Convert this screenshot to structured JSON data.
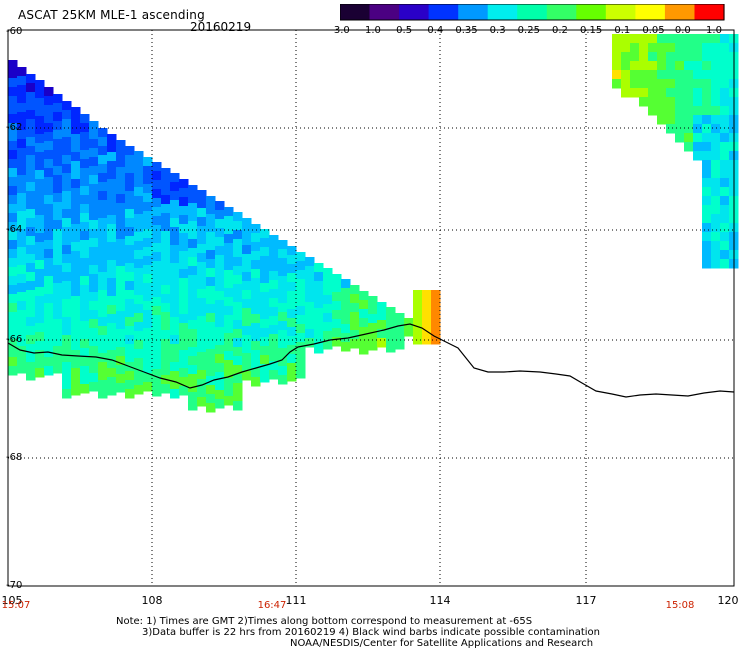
{
  "header": {
    "title": "ASCAT 25KM MLE-1 ascending",
    "date": "20160219"
  },
  "colorbar": {
    "labels": [
      "-3.0",
      "-1.0",
      "-0.5",
      "-0.4",
      "-0.35",
      "-0.3",
      "-0.25",
      "-0.2",
      "-0.15",
      "-0.1",
      "-0.05",
      "0.0",
      "1.0"
    ],
    "colors": [
      "#1a0033",
      "#4b0082",
      "#2a00c8",
      "#0033ff",
      "#0099ff",
      "#00eeee",
      "#00ffaa",
      "#33ff66",
      "#66ff00",
      "#ccff00",
      "#ffff00",
      "#ff9900",
      "#ff0000"
    ]
  },
  "axes": {
    "lat_labels": [
      "-60",
      "-62",
      "-64",
      "-66",
      "-68",
      "-70"
    ],
    "lon_labels": [
      "105",
      "108",
      "111",
      "114",
      "117",
      "120"
    ],
    "time_labels": [
      "15:07",
      "16:47",
      "15:08"
    ]
  },
  "notes": {
    "line1": "Note: 1) Times are GMT 2)Times along bottom correspond to measurement at -65S",
    "line2": "3)Data buffer is 22 hrs from 20160219 4) Black wind barbs indicate possible contamination",
    "line3": "NOAA/NESDIS/Center for Satellite Applications and Research"
  },
  "colors": {
    "coastline": "#000000",
    "time_label": "#cc2200",
    "grid": "#000000"
  }
}
